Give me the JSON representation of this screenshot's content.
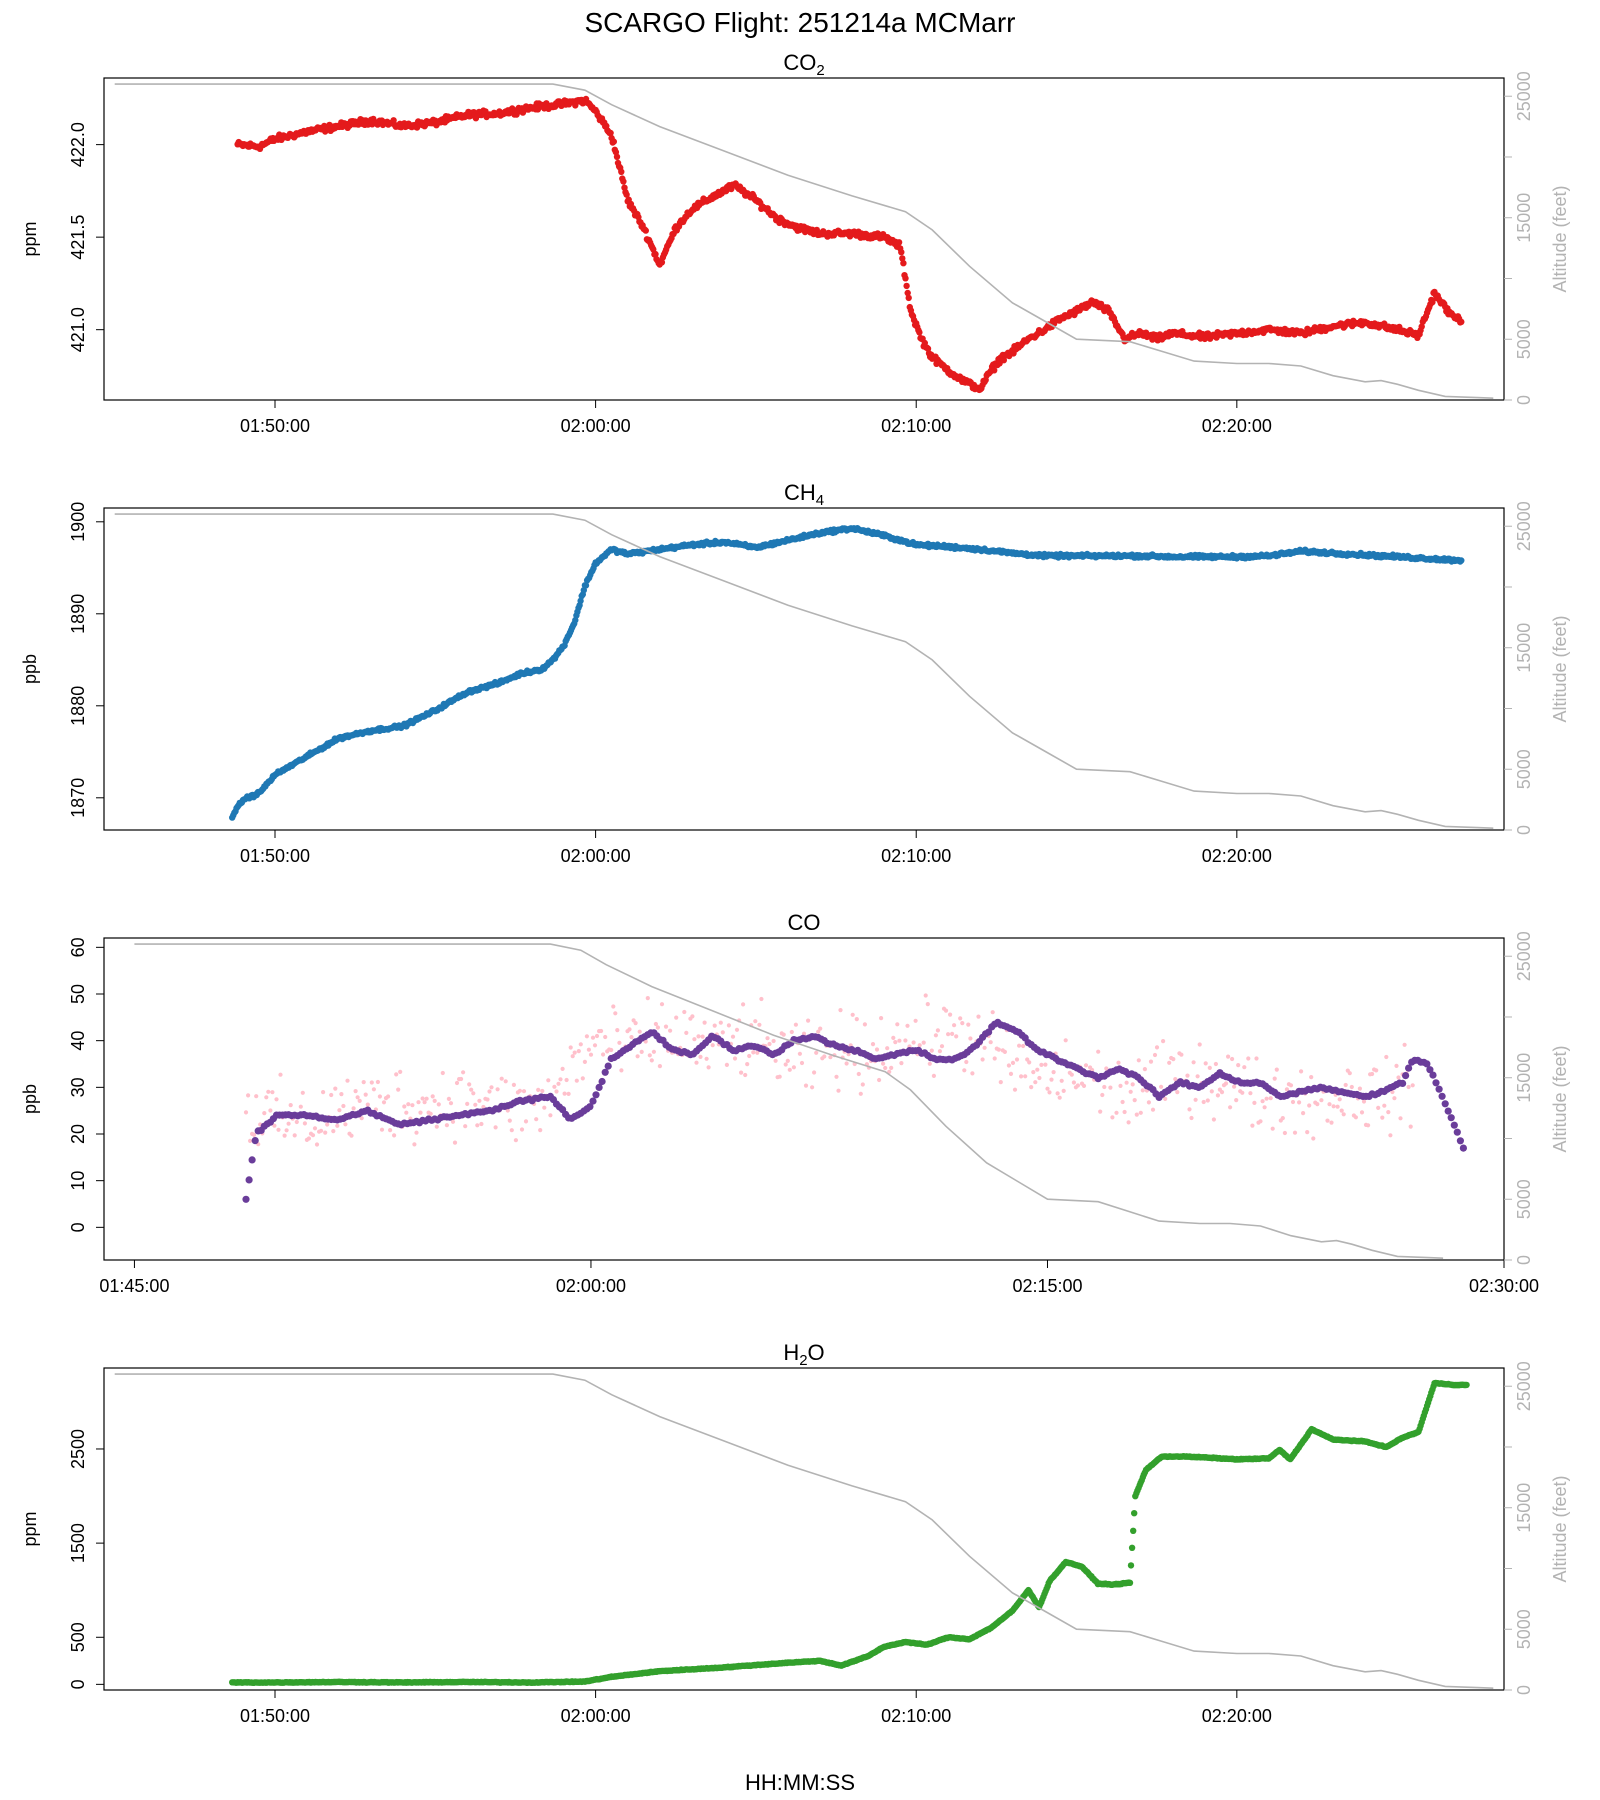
{
  "figure": {
    "title": "SCARGO Flight: 251214a  MCMarr",
    "xlabel": "HH:MM:SS",
    "colors": {
      "co2": "#e41a1c",
      "ch4": "#1f78b4",
      "co_raw": "#ffc0cb",
      "co_avg": "#6a3d9a",
      "h2o": "#33a02c",
      "altitude": "#b3b3b3",
      "axis": "#000000",
      "alt_axis": "#b3b3b3"
    }
  },
  "chart_data": [
    {
      "id": "co2",
      "type": "scatter",
      "title": "CO",
      "title_sub": "2",
      "ylabel": "ppm",
      "y2label": "Altitude (feet)",
      "xlim": [
        "01:44:40",
        "02:28:20"
      ],
      "ylim": [
        420.62,
        422.36
      ],
      "y2lim": [
        0,
        26500
      ],
      "xticks": [
        "01:50:00",
        "02:00:00",
        "02:10:00",
        "02:20:00"
      ],
      "yticks": [
        "421.0",
        "421.5",
        "422.0"
      ],
      "y2ticks": [
        "0",
        "5000",
        "15000",
        "25000"
      ],
      "series": [
        {
          "style": "points",
          "color": "co2",
          "x": [
            "01:48:50",
            "01:49:30",
            "01:50:00",
            "01:51:00",
            "01:52:00",
            "01:53:00",
            "01:54:00",
            "01:55:00",
            "01:56:00",
            "01:57:00",
            "01:58:00",
            "01:59:00",
            "01:59:40",
            "02:00:00",
            "02:00:30",
            "02:01:00",
            "02:01:30",
            "02:02:00",
            "02:02:30",
            "02:03:00",
            "02:03:40",
            "02:04:20",
            "02:05:00",
            "02:05:40",
            "02:06:20",
            "02:07:00",
            "02:08:00",
            "02:09:00",
            "02:09:30",
            "02:09:50",
            "02:10:10",
            "02:10:30",
            "02:11:00",
            "02:11:30",
            "02:12:00",
            "02:12:20",
            "02:12:40",
            "02:13:00",
            "02:13:30",
            "02:14:00",
            "02:14:30",
            "02:15:00",
            "02:15:30",
            "02:16:00",
            "02:16:30",
            "02:17:00",
            "02:17:30",
            "02:18:00",
            "02:19:00",
            "02:20:00",
            "02:21:00",
            "02:22:00",
            "02:23:00",
            "02:24:00",
            "02:25:00",
            "02:25:40",
            "02:26:10",
            "02:26:40",
            "02:27:00"
          ],
          "y": [
            422.0,
            421.99,
            422.03,
            422.07,
            422.1,
            422.13,
            422.1,
            422.12,
            422.16,
            422.17,
            422.2,
            422.22,
            422.24,
            422.18,
            422.05,
            421.7,
            421.55,
            421.35,
            421.55,
            421.65,
            421.72,
            421.78,
            421.7,
            421.6,
            421.55,
            421.52,
            421.52,
            421.5,
            421.45,
            421.1,
            420.95,
            420.85,
            420.78,
            420.72,
            420.68,
            420.78,
            420.85,
            420.88,
            420.95,
            421.0,
            421.06,
            421.1,
            421.15,
            421.1,
            420.95,
            420.98,
            420.95,
            420.98,
            420.96,
            420.98,
            421.0,
            420.98,
            421.02,
            421.04,
            421.0,
            420.97,
            421.2,
            421.08,
            421.05
          ]
        },
        {
          "style": "line",
          "color": "altitude",
          "name": "",
          "x": [
            "01:45:00",
            "01:55:00",
            "01:58:40",
            "01:59:40",
            "02:00:30",
            "02:02:00",
            "02:04:00",
            "02:06:00",
            "02:08:00",
            "02:09:40",
            "02:10:30",
            "02:11:40",
            "02:13:00",
            "02:14:00",
            "02:15:00",
            "02:16:40",
            "02:17:40",
            "02:18:40",
            "02:20:00",
            "02:21:00",
            "02:22:00",
            "02:23:00",
            "02:24:00",
            "02:24:30",
            "02:25:00",
            "02:25:40",
            "02:26:30",
            "02:27:30",
            "02:28:00"
          ],
          "y": [
            26000,
            26000,
            26000,
            25500,
            24300,
            22500,
            20500,
            18500,
            16800,
            15500,
            14000,
            11000,
            8000,
            6500,
            5000,
            4800,
            4000,
            3200,
            3000,
            3000,
            2800,
            2000,
            1500,
            1600,
            1300,
            800,
            300,
            200,
            150
          ]
        }
      ]
    },
    {
      "id": "ch4",
      "type": "scatter",
      "title": "CH",
      "title_sub": "4",
      "ylabel": "ppb",
      "y2label": "Altitude (feet)",
      "xlim": [
        "01:44:40",
        "02:28:20"
      ],
      "ylim": [
        1866.5,
        1901.5
      ],
      "y2lim": [
        0,
        26500
      ],
      "xticks": [
        "01:50:00",
        "02:00:00",
        "02:10:00",
        "02:20:00"
      ],
      "yticks": [
        "1870",
        "1880",
        "1890",
        "1900"
      ],
      "y2ticks": [
        "0",
        "5000",
        "15000",
        "25000"
      ],
      "series": [
        {
          "style": "points",
          "color": "ch4",
          "x": [
            "01:48:40",
            "01:49:00",
            "01:49:30",
            "01:50:00",
            "01:51:00",
            "01:52:00",
            "01:53:00",
            "01:54:00",
            "01:55:00",
            "01:56:00",
            "01:57:00",
            "01:57:40",
            "01:58:20",
            "01:58:40",
            "01:59:00",
            "01:59:20",
            "01:59:40",
            "02:00:00",
            "02:00:30",
            "02:01:00",
            "02:02:00",
            "02:03:00",
            "02:04:00",
            "02:05:00",
            "02:06:00",
            "02:07:00",
            "02:08:00",
            "02:09:00",
            "02:10:00",
            "02:11:00",
            "02:12:00",
            "02:13:00",
            "02:14:00",
            "02:15:00",
            "02:16:00",
            "02:17:00",
            "02:18:00",
            "02:19:00",
            "02:20:00",
            "02:21:00",
            "02:22:00",
            "02:23:00",
            "02:24:00",
            "02:25:00",
            "02:26:00",
            "02:27:00"
          ],
          "y": [
            1868,
            1869.8,
            1870.5,
            1872.5,
            1874.5,
            1876.5,
            1877.3,
            1877.8,
            1879.5,
            1881.5,
            1882.5,
            1883.5,
            1884,
            1885,
            1886.5,
            1889,
            1893,
            1895.5,
            1897,
            1896.5,
            1897,
            1897.5,
            1897.8,
            1897.2,
            1898,
            1898.8,
            1899.3,
            1898.5,
            1897.5,
            1897.3,
            1897.0,
            1896.6,
            1896.3,
            1896.3,
            1896.3,
            1896.3,
            1896.2,
            1896.2,
            1896.2,
            1896.3,
            1896.8,
            1896.6,
            1896.4,
            1896.2,
            1896,
            1895.8
          ]
        },
        {
          "style": "line",
          "color": "altitude",
          "name": "",
          "x": [
            "01:45:00",
            "01:55:00",
            "01:58:40",
            "01:59:40",
            "02:00:30",
            "02:02:00",
            "02:04:00",
            "02:06:00",
            "02:08:00",
            "02:09:40",
            "02:10:30",
            "02:11:40",
            "02:13:00",
            "02:14:00",
            "02:15:00",
            "02:16:40",
            "02:17:40",
            "02:18:40",
            "02:20:00",
            "02:21:00",
            "02:22:00",
            "02:23:00",
            "02:24:00",
            "02:24:30",
            "02:25:00",
            "02:25:40",
            "02:26:30",
            "02:27:30",
            "02:28:00"
          ],
          "y": [
            26000,
            26000,
            26000,
            25500,
            24300,
            22500,
            20500,
            18500,
            16800,
            15500,
            14000,
            11000,
            8000,
            6500,
            5000,
            4800,
            4000,
            3200,
            3000,
            3000,
            2800,
            2000,
            1500,
            1600,
            1300,
            800,
            300,
            200,
            150
          ]
        }
      ]
    },
    {
      "id": "co",
      "type": "scatter",
      "title": "CO",
      "title_sub": "",
      "ylabel": "ppb",
      "y2label": "Altitude (feet)",
      "xlim": [
        "01:44:00",
        "02:30:00"
      ],
      "ylim": [
        -7,
        62
      ],
      "y2lim": [
        0,
        26500
      ],
      "xticks": [
        "01:45:00",
        "02:00:00",
        "02:15:00",
        "02:30:00"
      ],
      "yticks": [
        "0",
        "10",
        "20",
        "30",
        "40",
        "50",
        "60"
      ],
      "y2ticks": [
        "0",
        "5000",
        "15000",
        "25000"
      ],
      "series": [
        {
          "style": "raw",
          "color": "co_raw",
          "x": [
            "01:48:40",
            "01:49:40",
            "01:50:40",
            "01:51:40",
            "01:52:40",
            "01:53:40",
            "01:54:40",
            "01:55:40",
            "01:56:40",
            "01:57:40",
            "01:58:40",
            "01:59:40",
            "02:00:20",
            "02:01:00",
            "02:02:00",
            "02:03:00",
            "02:04:00",
            "02:05:00",
            "02:06:00",
            "02:07:00",
            "02:08:00",
            "02:09:00",
            "02:10:00",
            "02:11:00",
            "02:12:00",
            "02:13:00",
            "02:14:00",
            "02:15:00",
            "02:16:00",
            "02:17:00",
            "02:18:00",
            "02:19:00",
            "02:20:00",
            "02:21:00",
            "02:22:00",
            "02:23:00",
            "02:24:00",
            "02:25:00",
            "02:26:00",
            "02:27:00"
          ],
          "y": [
            25,
            23,
            22,
            25,
            26,
            27,
            26,
            28,
            26,
            25,
            27,
            37,
            40,
            38,
            40,
            41,
            38,
            40,
            38,
            35,
            38,
            37,
            40,
            40,
            42,
            38,
            34,
            32,
            33,
            30,
            28,
            32,
            33,
            31,
            28,
            28,
            27,
            29,
            28,
            30
          ],
          "spread": 9
        },
        {
          "style": "points",
          "color": "co_avg",
          "x": [
            "01:48:40",
            "01:49:00",
            "01:49:40",
            "01:50:40",
            "01:51:40",
            "01:52:40",
            "01:53:40",
            "01:54:40",
            "01:55:40",
            "01:56:40",
            "01:57:40",
            "01:58:40",
            "01:59:20",
            "02:00:00",
            "02:00:40",
            "02:01:20",
            "02:02:00",
            "02:02:40",
            "02:03:20",
            "02:04:00",
            "02:04:40",
            "02:05:20",
            "02:06:00",
            "02:06:40",
            "02:07:20",
            "02:08:00",
            "02:08:40",
            "02:09:20",
            "02:10:00",
            "02:10:40",
            "02:11:20",
            "02:12:00",
            "02:12:40",
            "02:13:20",
            "02:14:00",
            "02:14:40",
            "02:15:20",
            "02:16:00",
            "02:16:40",
            "02:17:20",
            "02:18:00",
            "02:18:40",
            "02:19:20",
            "02:20:00",
            "02:20:40",
            "02:21:20",
            "02:22:00",
            "02:22:40",
            "02:23:20",
            "02:24:00",
            "02:24:40",
            "02:25:20",
            "02:26:00",
            "02:26:40",
            "02:27:00",
            "02:27:30",
            "02:28:10",
            "02:28:40"
          ],
          "y": [
            6,
            20,
            24,
            24,
            23,
            25,
            22,
            23,
            24,
            25,
            27,
            28,
            23,
            26,
            36,
            39,
            42,
            38,
            37,
            41,
            38,
            39,
            37,
            40,
            41,
            39,
            38,
            36,
            37,
            38,
            36,
            36,
            39,
            44,
            42,
            38,
            36,
            34,
            32,
            34,
            32,
            28,
            31,
            30,
            33,
            31,
            31,
            28,
            29,
            30,
            29,
            28,
            29,
            31,
            36,
            35,
            25,
            17
          ]
        },
        {
          "style": "line",
          "color": "altitude",
          "name": "",
          "x": [
            "01:45:00",
            "01:55:00",
            "01:58:40",
            "01:59:40",
            "02:00:30",
            "02:02:00",
            "02:04:00",
            "02:06:00",
            "02:08:00",
            "02:09:40",
            "02:10:30",
            "02:11:40",
            "02:13:00",
            "02:14:00",
            "02:15:00",
            "02:16:40",
            "02:17:40",
            "02:18:40",
            "02:20:00",
            "02:21:00",
            "02:22:00",
            "02:23:00",
            "02:24:00",
            "02:24:30",
            "02:25:00",
            "02:25:40",
            "02:26:30",
            "02:27:30",
            "02:28:00"
          ],
          "y": [
            26000,
            26000,
            26000,
            25500,
            24300,
            22500,
            20500,
            18500,
            16800,
            15500,
            14000,
            11000,
            8000,
            6500,
            5000,
            4800,
            4000,
            3200,
            3000,
            3000,
            2800,
            2000,
            1500,
            1600,
            1300,
            800,
            300,
            200,
            150
          ]
        }
      ]
    },
    {
      "id": "h2o",
      "type": "scatter",
      "title": "H",
      "title_sub": "2",
      "title_tail": "O",
      "ylabel": "ppm",
      "y2label": "Altitude (feet)",
      "xlim": [
        "01:44:40",
        "02:28:20"
      ],
      "ylim": [
        -60,
        3360
      ],
      "y2lim": [
        0,
        26500
      ],
      "xticks": [
        "01:50:00",
        "02:00:00",
        "02:10:00",
        "02:20:00"
      ],
      "yticks": [
        "0",
        "500",
        "1500",
        "2500"
      ],
      "y2ticks": [
        "0",
        "5000",
        "15000",
        "25000"
      ],
      "series": [
        {
          "style": "points",
          "color": "h2o",
          "x": [
            "01:48:40",
            "01:50:00",
            "01:52:00",
            "01:54:00",
            "01:56:00",
            "01:58:00",
            "01:59:40",
            "02:00:30",
            "02:02:00",
            "02:04:00",
            "02:06:00",
            "02:07:00",
            "02:07:40",
            "02:08:30",
            "02:09:00",
            "02:09:40",
            "02:10:20",
            "02:11:00",
            "02:11:40",
            "02:12:20",
            "02:13:00",
            "02:13:30",
            "02:13:50",
            "02:14:10",
            "02:14:40",
            "02:15:10",
            "02:15:40",
            "02:16:10",
            "02:16:40",
            "02:16:50",
            "02:17:10",
            "02:17:40",
            "02:18:20",
            "02:19:00",
            "02:20:00",
            "02:21:00",
            "02:21:20",
            "02:21:40",
            "02:22:20",
            "02:23:00",
            "02:24:00",
            "02:24:40",
            "02:25:10",
            "02:25:40",
            "02:26:10",
            "02:26:50",
            "02:27:10"
          ],
          "y": [
            20,
            20,
            25,
            20,
            25,
            20,
            30,
            80,
            140,
            180,
            230,
            250,
            200,
            300,
            400,
            450,
            420,
            500,
            480,
            600,
            780,
            1000,
            820,
            1100,
            1300,
            1250,
            1070,
            1060,
            1080,
            2000,
            2280,
            2420,
            2420,
            2410,
            2390,
            2400,
            2490,
            2390,
            2710,
            2600,
            2580,
            2520,
            2620,
            2680,
            3200,
            3180,
            3180
          ]
        },
        {
          "style": "line",
          "color": "altitude",
          "name": "",
          "x": [
            "01:45:00",
            "01:55:00",
            "01:58:40",
            "01:59:40",
            "02:00:30",
            "02:02:00",
            "02:04:00",
            "02:06:00",
            "02:08:00",
            "02:09:40",
            "02:10:30",
            "02:11:40",
            "02:13:00",
            "02:14:00",
            "02:15:00",
            "02:16:40",
            "02:17:40",
            "02:18:40",
            "02:20:00",
            "02:21:00",
            "02:22:00",
            "02:23:00",
            "02:24:00",
            "02:24:30",
            "02:25:00",
            "02:25:40",
            "02:26:30",
            "02:27:30",
            "02:28:00"
          ],
          "y": [
            26000,
            26000,
            26000,
            25500,
            24300,
            22500,
            20500,
            18500,
            16800,
            15500,
            14000,
            11000,
            8000,
            6500,
            5000,
            4800,
            4000,
            3200,
            3000,
            3000,
            2800,
            2000,
            1500,
            1600,
            1300,
            800,
            300,
            200,
            150
          ]
        }
      ]
    }
  ]
}
